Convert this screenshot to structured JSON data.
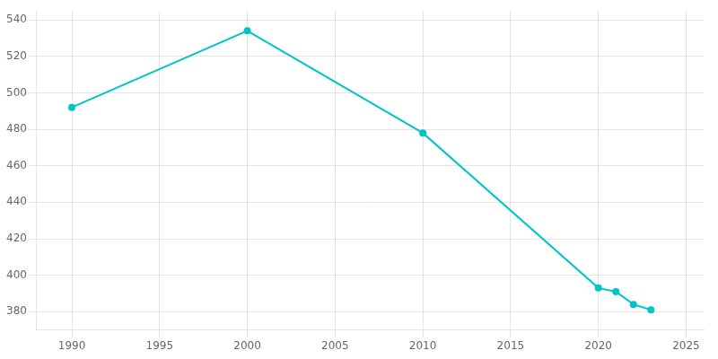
{
  "chart_data": {
    "type": "line",
    "x": [
      1990,
      2000,
      2010,
      2020,
      2021,
      2022,
      2023
    ],
    "values": [
      492,
      534,
      478,
      393,
      391,
      384,
      381
    ],
    "color": "#00c5c5",
    "marker": "circle",
    "xlim": [
      1988,
      2026
    ],
    "xticks": [
      1990,
      1995,
      2000,
      2005,
      2010,
      2015,
      2020,
      2025
    ],
    "ylim": [
      370,
      545
    ],
    "yticks": [
      380,
      400,
      420,
      440,
      460,
      480,
      500,
      520,
      540
    ],
    "grid": true
  }
}
